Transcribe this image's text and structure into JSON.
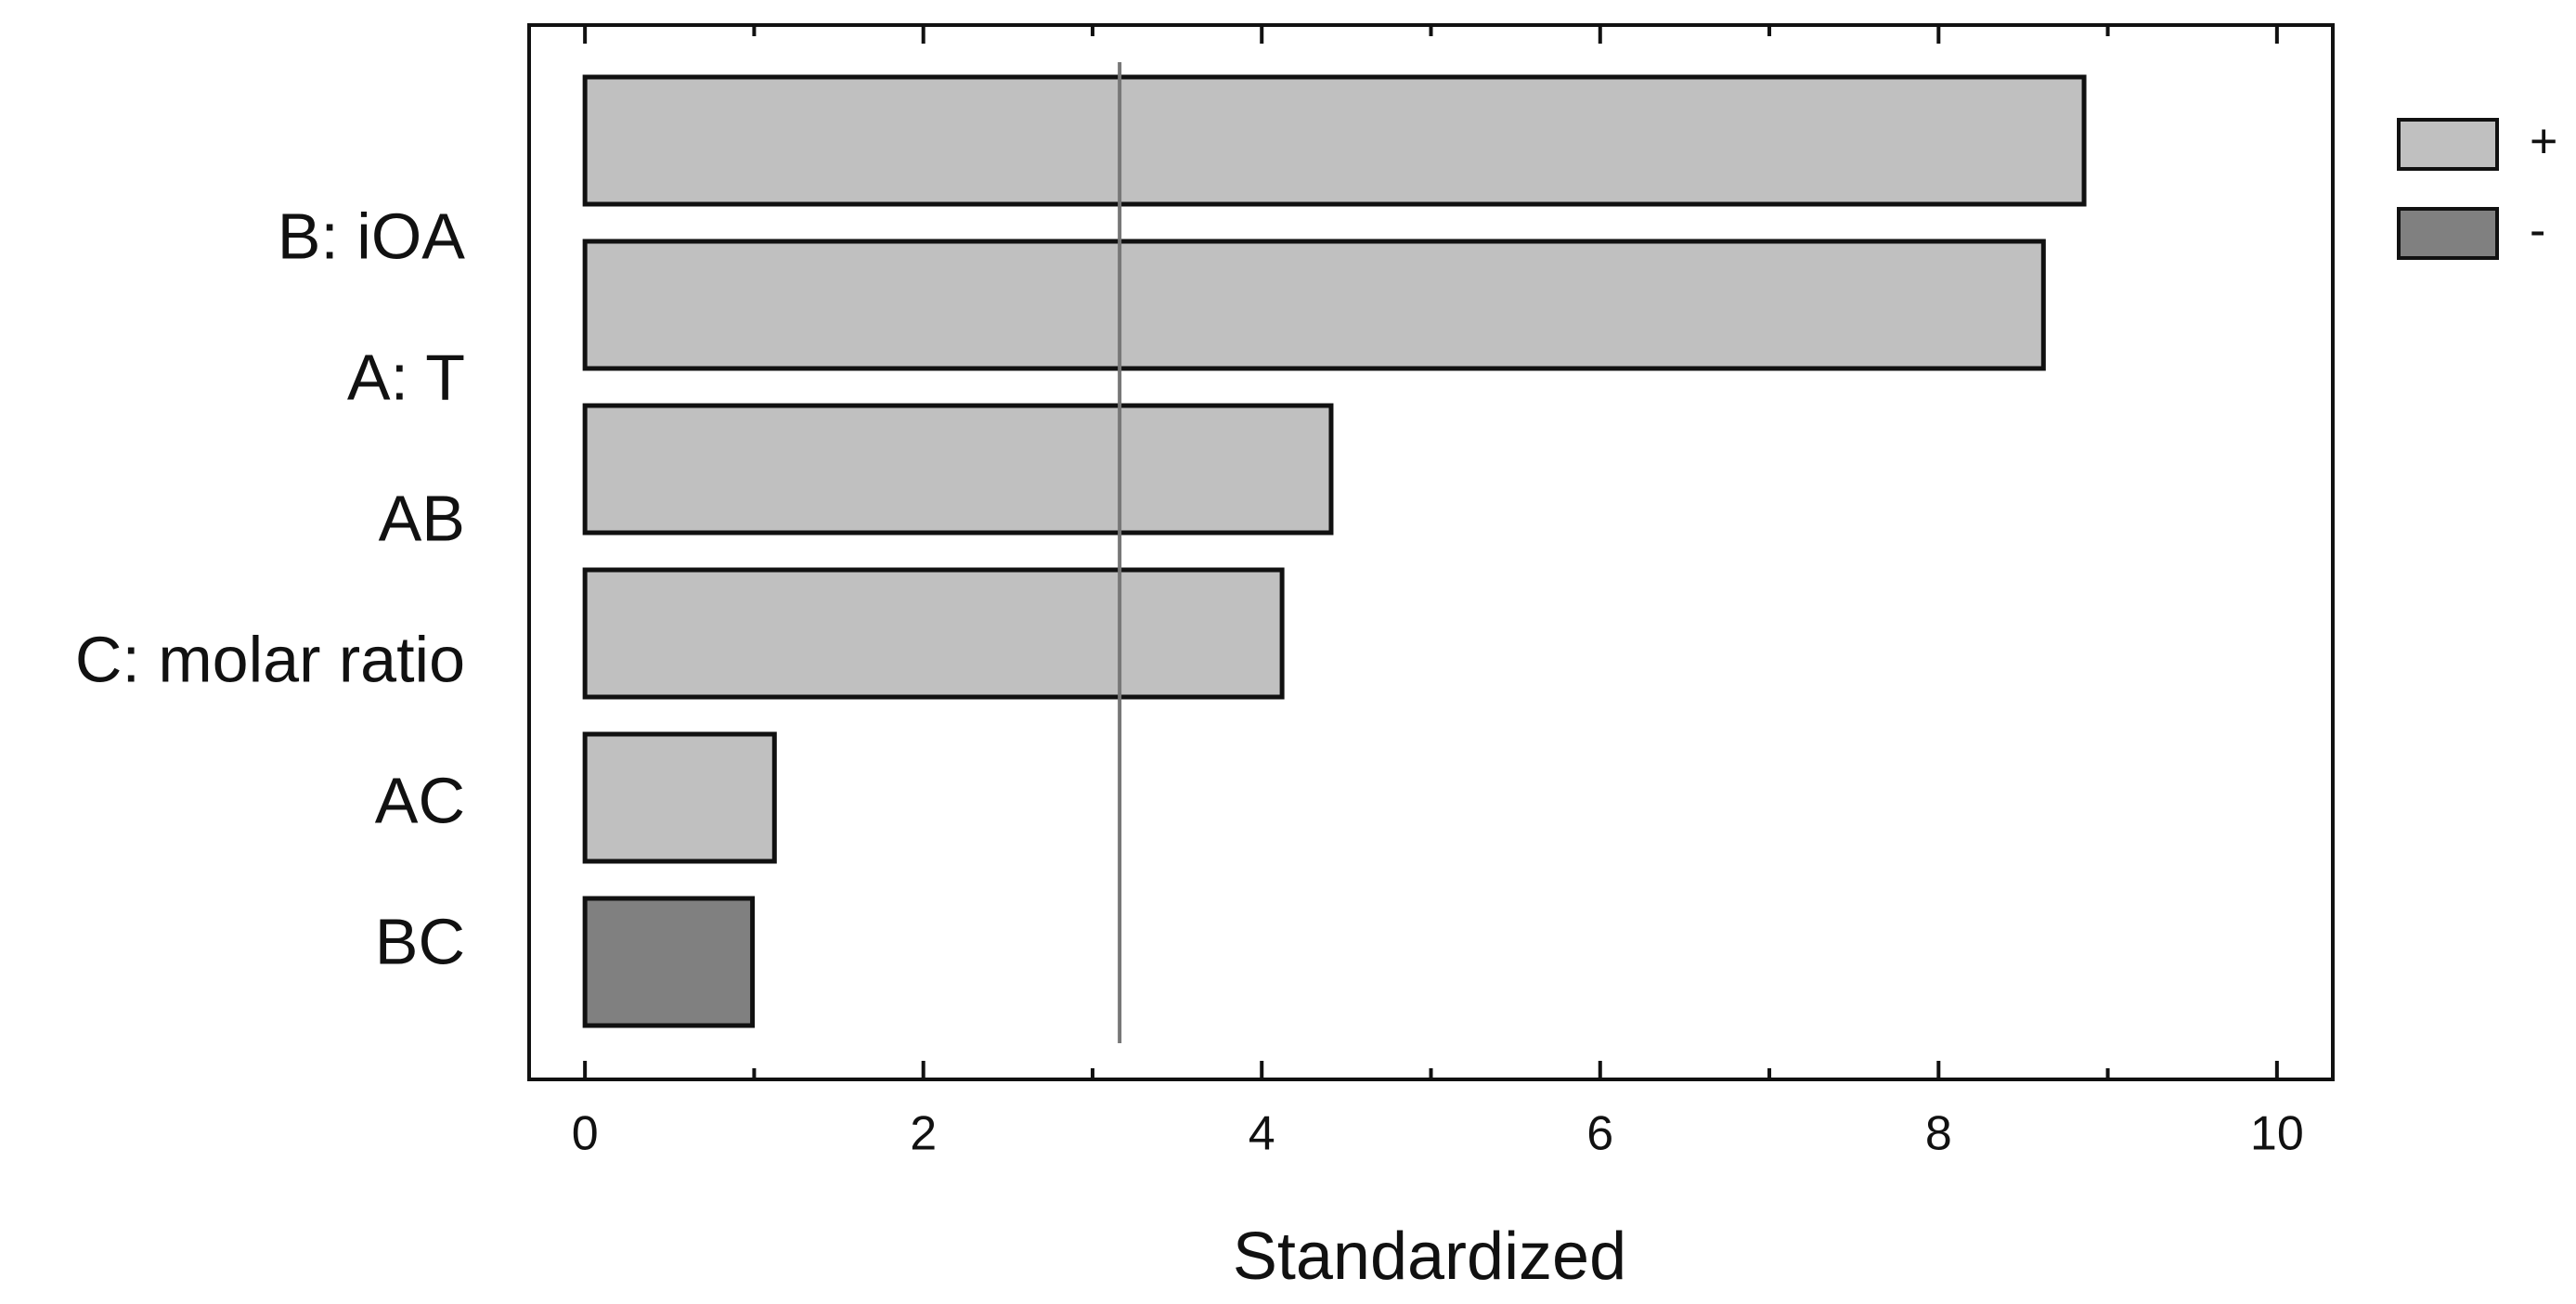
{
  "chart_data": {
    "type": "bar",
    "orientation": "horizontal",
    "categories": [
      "B: iOA",
      "A: T",
      "AB",
      "C: molar ratio",
      "AC",
      "BC"
    ],
    "series": [
      {
        "name": "+",
        "color": "#c0c0c0",
        "values": [
          8.86,
          8.62,
          4.41,
          4.12,
          1.12,
          null
        ]
      },
      {
        "name": "-",
        "color": "#808080",
        "values": [
          null,
          null,
          null,
          null,
          null,
          0.99
        ]
      }
    ],
    "xlabel": "Standardized",
    "xlim": [
      -0.33,
      10.33
    ],
    "xticks": [
      0,
      2,
      4,
      6,
      8,
      10
    ],
    "xminor_ticks": [
      1,
      3,
      5,
      7,
      9
    ],
    "reference_line": 3.16,
    "legend": "right"
  }
}
